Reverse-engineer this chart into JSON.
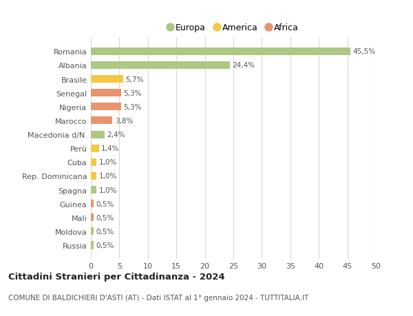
{
  "categories": [
    "Romania",
    "Albania",
    "Brasile",
    "Senegal",
    "Nigeria",
    "Marocco",
    "Macedonia d/N.",
    "Perù",
    "Cuba",
    "Rep. Dominicana",
    "Spagna",
    "Guinea",
    "Mali",
    "Moldova",
    "Russia"
  ],
  "values": [
    45.5,
    24.4,
    5.7,
    5.3,
    5.3,
    3.8,
    2.4,
    1.4,
    1.0,
    1.0,
    1.0,
    0.5,
    0.5,
    0.5,
    0.5
  ],
  "labels": [
    "45,5%",
    "24,4%",
    "5,7%",
    "5,3%",
    "5,3%",
    "3,8%",
    "2,4%",
    "1,4%",
    "1,0%",
    "1,0%",
    "1,0%",
    "0,5%",
    "0,5%",
    "0,5%",
    "0,5%"
  ],
  "colors": [
    "#adc882",
    "#adc882",
    "#f5c842",
    "#e8956d",
    "#e8956d",
    "#e8956d",
    "#adc882",
    "#f5c842",
    "#f5c842",
    "#f5c842",
    "#adc882",
    "#e8956d",
    "#e8956d",
    "#adc882",
    "#adc882"
  ],
  "legend_labels": [
    "Europa",
    "America",
    "Africa"
  ],
  "legend_colors": [
    "#adc882",
    "#f5c842",
    "#e8956d"
  ],
  "title": "Cittadini Stranieri per Cittadinanza - 2024",
  "subtitle": "COMUNE DI BALDICHIERI D'ASTI (AT) - Dati ISTAT al 1° gennaio 2024 - TUTTITALIA.IT",
  "xlim": [
    0,
    50
  ],
  "xticks": [
    0,
    5,
    10,
    15,
    20,
    25,
    30,
    35,
    40,
    45,
    50
  ],
  "background_color": "#ffffff",
  "grid_color": "#d8d8d8",
  "bar_height": 0.55
}
